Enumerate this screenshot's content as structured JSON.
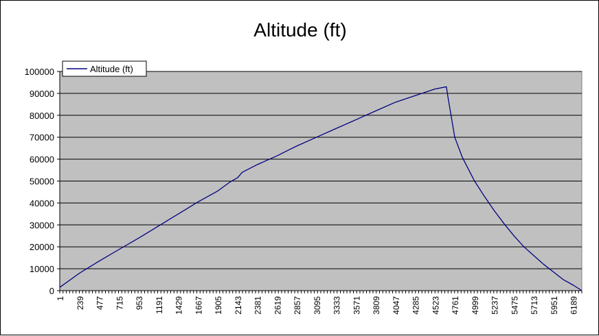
{
  "chart_data": {
    "type": "line",
    "title": "Altitude (ft)",
    "xlabel": "",
    "ylabel": "",
    "ylim": [
      0,
      100000
    ],
    "y_ticks": [
      0,
      10000,
      20000,
      30000,
      40000,
      50000,
      60000,
      70000,
      80000,
      90000,
      100000
    ],
    "x_tick_labels": [
      "1",
      "239",
      "477",
      "715",
      "953",
      "1191",
      "1429",
      "1667",
      "1905",
      "2143",
      "2381",
      "2619",
      "2857",
      "3095",
      "3333",
      "3571",
      "3809",
      "4047",
      "4285",
      "4523",
      "4761",
      "4999",
      "5237",
      "5475",
      "5713",
      "5951",
      "6189"
    ],
    "xlim": [
      1,
      6292
    ],
    "grid": "horizontal",
    "plot_background": "#c0c0c0",
    "legend": {
      "position": "top-left",
      "entries": [
        "Altitude (ft)"
      ]
    },
    "series": [
      {
        "name": "Altitude (ft)",
        "color": "#000080",
        "x": [
          1,
          239,
          477,
          715,
          953,
          1191,
          1429,
          1667,
          1905,
          2050,
          2143,
          2200,
          2381,
          2619,
          2750,
          2857,
          3095,
          3333,
          3571,
          3809,
          4047,
          4285,
          4523,
          4660,
          4680,
          4761,
          4850,
          4999,
          5118,
          5237,
          5356,
          5475,
          5594,
          5713,
          5832,
          5951,
          6070,
          6189,
          6292
        ],
        "y": [
          1500,
          8000,
          13500,
          18800,
          24000,
          29500,
          35000,
          40500,
          45500,
          49500,
          51500,
          54000,
          57500,
          61500,
          64000,
          66000,
          70000,
          74000,
          78000,
          82000,
          86000,
          89000,
          92000,
          93000,
          88000,
          70000,
          61000,
          50000,
          43000,
          36500,
          30500,
          25000,
          20000,
          16000,
          12000,
          8500,
          5000,
          2500,
          0
        ]
      }
    ]
  }
}
